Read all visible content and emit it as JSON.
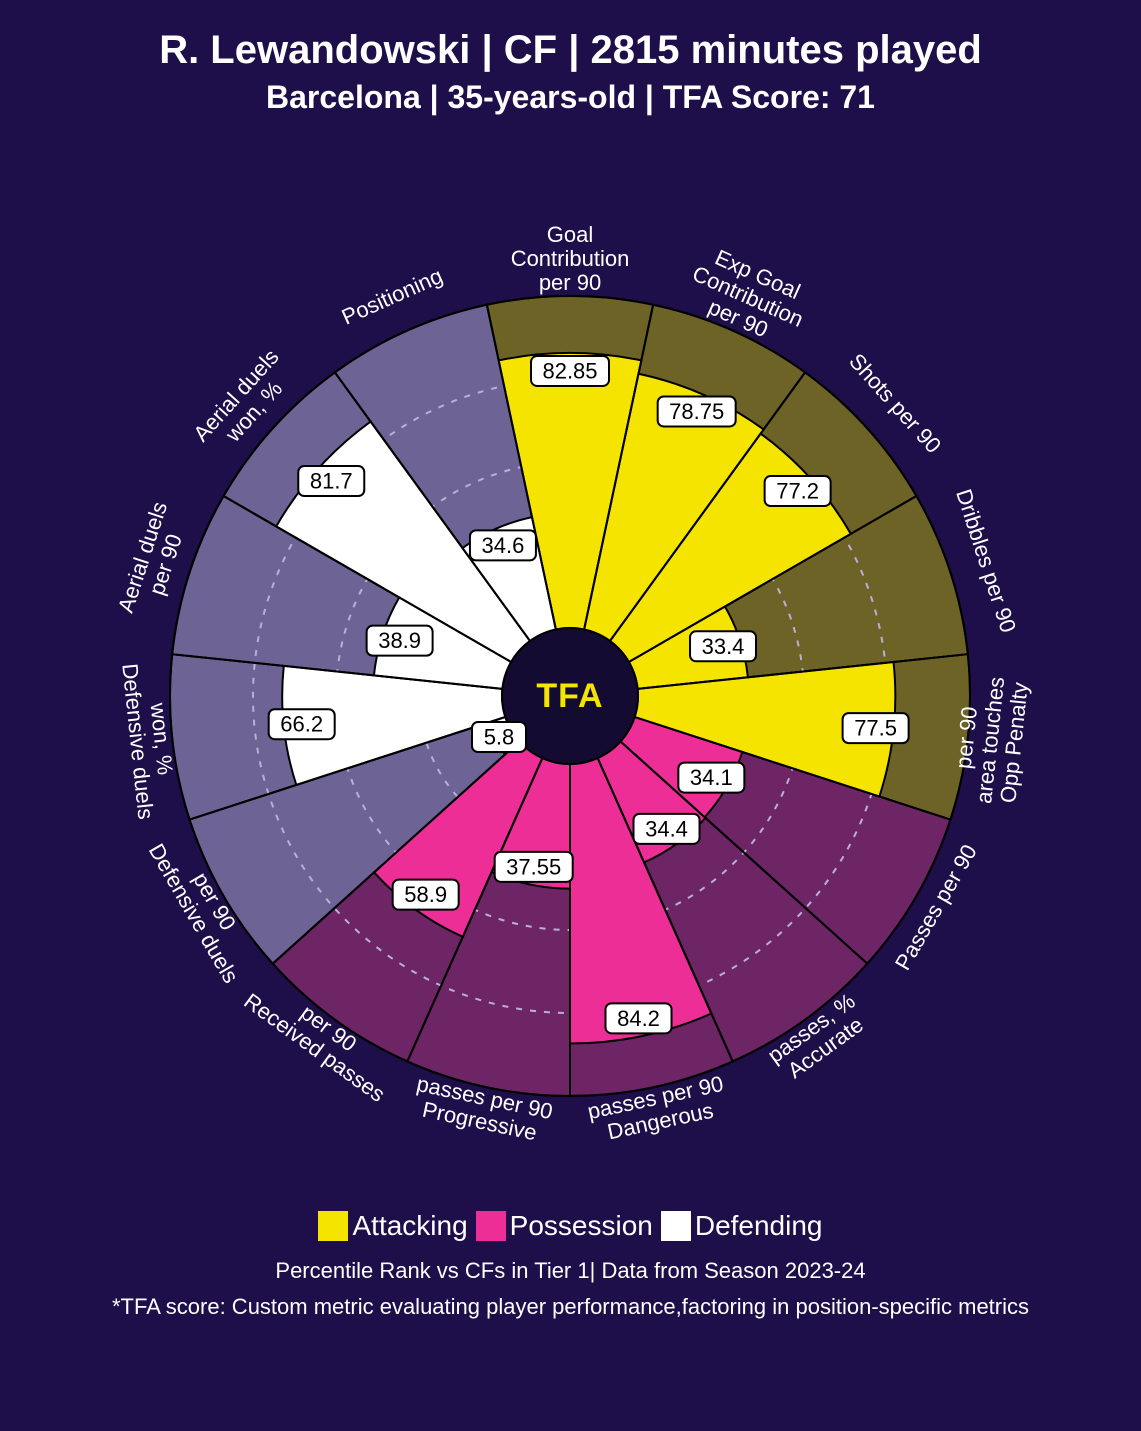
{
  "title": "R. Lewandowski | CF | 2815 minutes played",
  "subtitle": "Barcelona | 35-years-old | TFA Score: 71",
  "center_logo": "TFA",
  "legend": [
    {
      "label": "Attacking",
      "color": "#f5e400"
    },
    {
      "label": "Possession",
      "color": "#ed2e96"
    },
    {
      "label": "Defending",
      "color": "#ffffff"
    }
  ],
  "footer1": "Percentile Rank vs CFs in Tier 1| Data from Season 2023-24",
  "footer2": "*TFA score: Custom metric evaluating player performance,factoring in position-specific metrics",
  "chart": {
    "type": "polar-bar",
    "background_color": "#1e0e4a",
    "inner_radius": 68,
    "outer_radius": 400,
    "label_radius": 430,
    "grid_color": "#b9b0d8",
    "grid_dash": "6 8",
    "grid_rings": [
      0.25,
      0.5,
      0.75
    ],
    "sector_stroke": "#000000",
    "sector_stroke_width": 2,
    "center_circle_fill": "#140b33",
    "categories": {
      "attacking": {
        "fill": "#f5e400",
        "bg": "#6d6327"
      },
      "possession": {
        "fill": "#ed2e96",
        "bg": "#6e2565"
      },
      "defending": {
        "fill": "#ffffff",
        "bg": "#6d6394"
      }
    },
    "metrics": [
      {
        "label": "Goal Contribution per 90",
        "value": 82.85,
        "category": "attacking"
      },
      {
        "label": "Exp Goal Contribution per 90",
        "value": 78.75,
        "category": "attacking"
      },
      {
        "label": "Shots per 90",
        "value": 77.2,
        "category": "attacking"
      },
      {
        "label": "Dribbles per 90",
        "value": 33.4,
        "category": "attacking"
      },
      {
        "label": "Opp Penalty area touches per 90",
        "value": 77.5,
        "category": "attacking"
      },
      {
        "label": "Passes per 90",
        "value": 34.1,
        "category": "possession"
      },
      {
        "label": "Accurate passes, %",
        "value": 34.4,
        "category": "possession"
      },
      {
        "label": "Dangerous passes per 90",
        "value": 84.2,
        "category": "possession"
      },
      {
        "label": "Progressive passes per 90",
        "value": 37.55,
        "category": "possession"
      },
      {
        "label": "Received passes per 90",
        "value": 58.9,
        "category": "possession"
      },
      {
        "label": "Defensive duels per 90",
        "value": 5.8,
        "category": "defending"
      },
      {
        "label": "Defensive duels won, %",
        "value": 66.2,
        "category": "defending"
      },
      {
        "label": "Aerial duels per 90",
        "value": 38.9,
        "category": "defending"
      },
      {
        "label": "Aerial duels won, %",
        "value": 81.7,
        "category": "defending"
      },
      {
        "label": "Positioning",
        "value": 34.6,
        "category": "defending"
      }
    ]
  }
}
